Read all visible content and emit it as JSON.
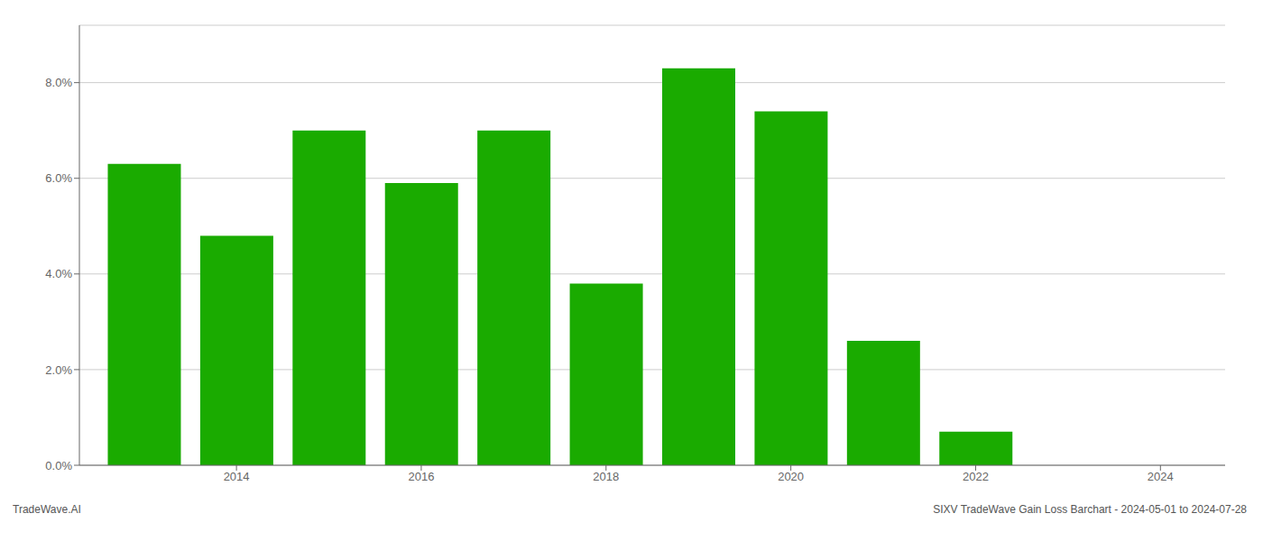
{
  "chart_data": {
    "type": "bar",
    "x": [
      2013,
      2014,
      2015,
      2016,
      2017,
      2018,
      2019,
      2020,
      2021,
      2022,
      2023
    ],
    "values": [
      0.063,
      0.048,
      0.07,
      0.059,
      0.07,
      0.038,
      0.083,
      0.074,
      0.026,
      0.007,
      0.0
    ],
    "color": "#1aab00",
    "xlim": [
      2012.3,
      2024.7
    ],
    "xticks": [
      2014,
      2016,
      2018,
      2020,
      2022,
      2024
    ],
    "ylim": [
      0,
      0.092
    ],
    "yticks": [
      {
        "value": 0.0,
        "label": "0.0%"
      },
      {
        "value": 0.02,
        "label": "2.0%"
      },
      {
        "value": 0.04,
        "label": "4.0%"
      },
      {
        "value": 0.06,
        "label": "6.0%"
      },
      {
        "value": 0.08,
        "label": "8.0%"
      }
    ],
    "grid": true,
    "annotations": [
      "TradeWave.AI",
      "SIXV TradeWave Gain Loss Barchart - 2024-05-01 to 2024-07-28"
    ]
  }
}
